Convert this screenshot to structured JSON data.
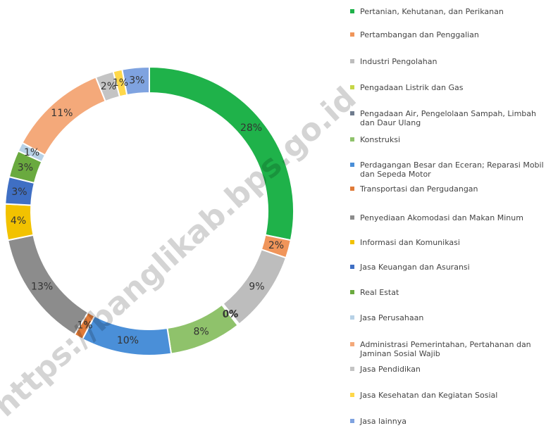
{
  "chart_data": {
    "type": "donut",
    "watermark": "https://banglikab.bps.go.id",
    "categories": [
      "Pertanian, Kehutanan, dan Perikanan",
      "Pertambangan dan Penggalian",
      "Industri Pengolahan",
      "Pengadaan Listrik dan Gas",
      "Pengadaan Air, Pengelolaan Sampah, Limbah dan Daur Ulang",
      "Konstruksi",
      "Perdagangan Besar dan Eceran; Reparasi Mobil dan Sepeda Motor",
      "Transportasi dan Pergudangan",
      "Penyediaan Akomodasi dan Makan Minum",
      "Informasi dan Komunikasi",
      "Jasa Keuangan dan Asuransi",
      "Real Estat",
      "Jasa Perusahaan",
      "Administrasi Pemerintahan, Pertahanan dan Jaminan Sosial Wajib",
      "Jasa Pendidikan",
      "Jasa Kesehatan dan Kegiatan Sosial",
      "Jasa lainnya"
    ],
    "values": [
      28,
      2,
      9,
      0.1,
      0.1,
      8,
      10,
      1,
      13,
      4,
      3,
      3,
      1,
      11,
      2,
      1,
      3
    ],
    "value_labels": [
      "28%",
      "2%",
      "9%",
      "0%",
      "0%",
      "8%",
      "10%",
      "1%",
      "13%",
      "4%",
      "3%",
      "3%",
      "1%",
      "11%",
      "2%",
      "1%",
      "3%"
    ],
    "colors": [
      "#1fb24a",
      "#f0955a",
      "#bdbdbd",
      "#c6d647",
      "#6f7c8e",
      "#8fc26b",
      "#4a8fd8",
      "#e07b39",
      "#8c8c8c",
      "#f2c200",
      "#3f6fc4",
      "#6aaa3f",
      "#b7d1e6",
      "#f4a97a",
      "#c4c4c4",
      "#ffd84a",
      "#7fa3e0"
    ],
    "legend": "right"
  }
}
